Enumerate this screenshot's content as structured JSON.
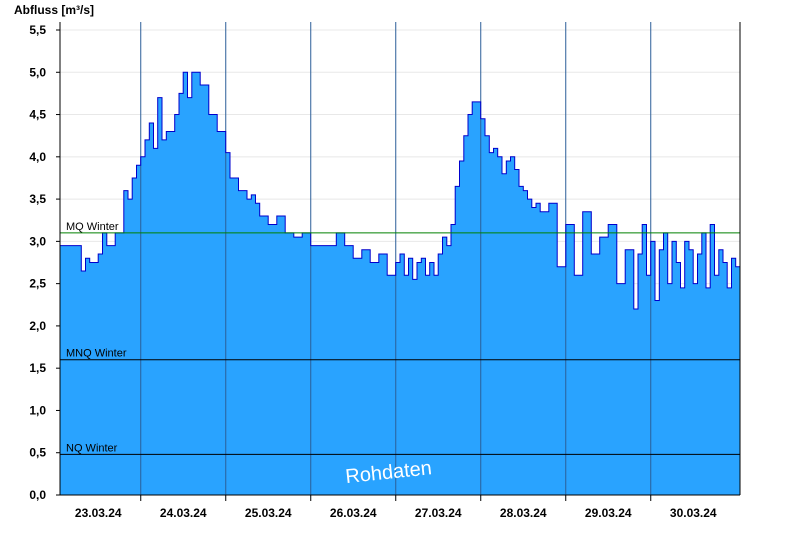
{
  "chart_data": {
    "type": "area",
    "ylabel": "Abfluss [m³/s]",
    "ylim": [
      0,
      5.5
    ],
    "y_ticks": [
      "0,0",
      "0,5",
      "1,0",
      "1,5",
      "2,0",
      "2,5",
      "3,0",
      "3,5",
      "4,0",
      "4,5",
      "5,0",
      "5,5"
    ],
    "x_ticks": [
      "23.03.24",
      "24.03.24",
      "25.03.24",
      "26.03.24",
      "27.03.24",
      "28.03.24",
      "29.03.24",
      "30.03.24"
    ],
    "x_range_days": [
      22.55,
      30.55
    ],
    "grid": true,
    "reference_lines": [
      {
        "label": "MQ Winter",
        "value": 3.1,
        "color": "#008000"
      },
      {
        "label": "MNQ Winter",
        "value": 1.6,
        "color": "#000000"
      },
      {
        "label": "NQ Winter",
        "value": 0.48,
        "color": "#000000"
      }
    ],
    "watermark": "Rohdaten",
    "fill_color": "#29a3ff",
    "line_color": "#0000cc",
    "series": [
      {
        "x": [
          22.55,
          22.75,
          22.8,
          22.85,
          22.9,
          23.0,
          23.05,
          23.1,
          23.15,
          23.2,
          23.3,
          23.35,
          23.4,
          23.45,
          23.5,
          23.55,
          23.6,
          23.65,
          23.7,
          23.75,
          23.8,
          23.9,
          23.95,
          24.0,
          24.05,
          24.1,
          24.15,
          24.2,
          24.25,
          24.3,
          24.35,
          24.4,
          24.5,
          24.55,
          24.65,
          24.75,
          24.8,
          24.85,
          24.9,
          25.0,
          25.1,
          25.2,
          25.3,
          25.4,
          25.5,
          25.6,
          25.7,
          25.8,
          25.9,
          26.0,
          26.1,
          26.2,
          26.3,
          26.4,
          26.5,
          26.55,
          26.6,
          26.65,
          26.7,
          26.75,
          26.8,
          26.85,
          26.9,
          26.95,
          27.0,
          27.05,
          27.1,
          27.15,
          27.2,
          27.25,
          27.3,
          27.35,
          27.4,
          27.45,
          27.5,
          27.55,
          27.6,
          27.65,
          27.7,
          27.75,
          27.8,
          27.85,
          27.9,
          27.95,
          28.0,
          28.05,
          28.1,
          28.15,
          28.2,
          28.3,
          28.4,
          28.5,
          28.6,
          28.7,
          28.8,
          28.9,
          29.0,
          29.1,
          29.2,
          29.3,
          29.35,
          29.4,
          29.45,
          29.5,
          29.55,
          29.6,
          29.65,
          29.7,
          29.75,
          29.8,
          29.85,
          29.9,
          29.95,
          30.0,
          30.05,
          30.1,
          30.15,
          30.2,
          30.25,
          30.3,
          30.35,
          30.4,
          30.45,
          30.5,
          30.55
        ],
        "y": [
          2.95,
          2.95,
          2.65,
          2.8,
          2.75,
          2.85,
          3.1,
          2.95,
          2.95,
          3.1,
          3.6,
          3.5,
          3.75,
          3.9,
          4.0,
          4.2,
          4.4,
          4.1,
          4.7,
          4.2,
          4.3,
          4.5,
          4.75,
          5.0,
          4.7,
          5.0,
          5.0,
          4.85,
          4.85,
          4.5,
          4.5,
          4.3,
          4.05,
          3.75,
          3.6,
          3.5,
          3.55,
          3.45,
          3.3,
          3.2,
          3.3,
          3.1,
          3.05,
          3.1,
          2.95,
          2.95,
          2.95,
          3.1,
          2.95,
          2.8,
          2.9,
          2.75,
          2.85,
          2.6,
          2.75,
          2.85,
          2.6,
          2.8,
          2.55,
          2.75,
          2.8,
          2.6,
          2.75,
          2.6,
          2.85,
          3.05,
          2.95,
          3.2,
          3.65,
          3.95,
          4.25,
          4.5,
          4.65,
          4.65,
          4.45,
          4.25,
          4.05,
          4.1,
          4.0,
          3.8,
          3.95,
          4.0,
          3.85,
          3.65,
          3.6,
          3.5,
          3.4,
          3.45,
          3.35,
          3.45,
          2.7,
          3.2,
          2.6,
          3.35,
          2.85,
          3.05,
          3.2,
          2.5,
          2.9,
          2.2,
          2.85,
          3.2,
          2.6,
          3.0,
          2.3,
          2.9,
          3.1,
          2.5,
          3.0,
          2.75,
          2.45,
          3.0,
          2.9,
          2.5,
          2.85,
          3.1,
          2.45,
          3.2,
          2.6,
          2.9,
          2.75,
          2.45,
          2.8,
          2.7,
          2.55
        ]
      }
    ]
  }
}
